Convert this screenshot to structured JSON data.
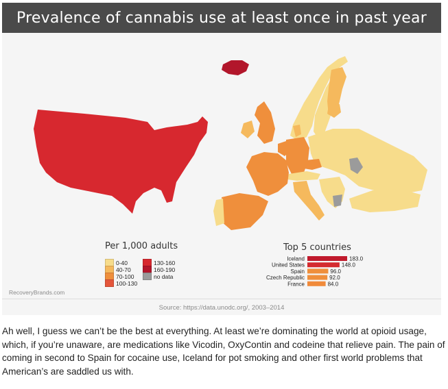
{
  "title": "Prevalence of cannabis use at least once in past year",
  "legend": {
    "title": "Per 1,000 adults",
    "items": [
      {
        "label": "0-40",
        "color": "#f7dc8b"
      },
      {
        "label": "40-70",
        "color": "#f5b95d"
      },
      {
        "label": "70-100",
        "color": "#ef8f3c"
      },
      {
        "label": "100-130",
        "color": "#e4563b"
      },
      {
        "label": "130-160",
        "color": "#d7282f"
      },
      {
        "label": "160-190",
        "color": "#b2162b"
      },
      {
        "label": "no data",
        "color": "#9b9b9b"
      }
    ]
  },
  "brand_credit": "RecoveryBrands.com",
  "source": "Source: https://data.unodc.org/, 2003–2014",
  "chart_data": {
    "type": "bar",
    "title": "Top 5 countries",
    "orientation": "horizontal",
    "categories": [
      "Iceland",
      "United States",
      "Spain",
      "Czech Republic",
      "France"
    ],
    "values": [
      183.0,
      148.0,
      96.0,
      92.0,
      84.0
    ],
    "value_labels": [
      "183.0",
      "148.0",
      "96.0",
      "92.0",
      "84.0"
    ],
    "colors": [
      "#c01a2c",
      "#d42a2f",
      "#ef8f3c",
      "#ef8f3c",
      "#f08a3a"
    ],
    "xlim": [
      0,
      183
    ]
  },
  "caption": "Ah well, I guess we can’t be the best at everything. At least we’re dominating the world at opioid usage, which, if you’re unaware, are medications like Vicodin, OxyContin and codeine that relieve pain. The pain of coming in second to Spain for cocaine use, Iceland for pot smoking and other first world problems that American’s are saddled us with."
}
